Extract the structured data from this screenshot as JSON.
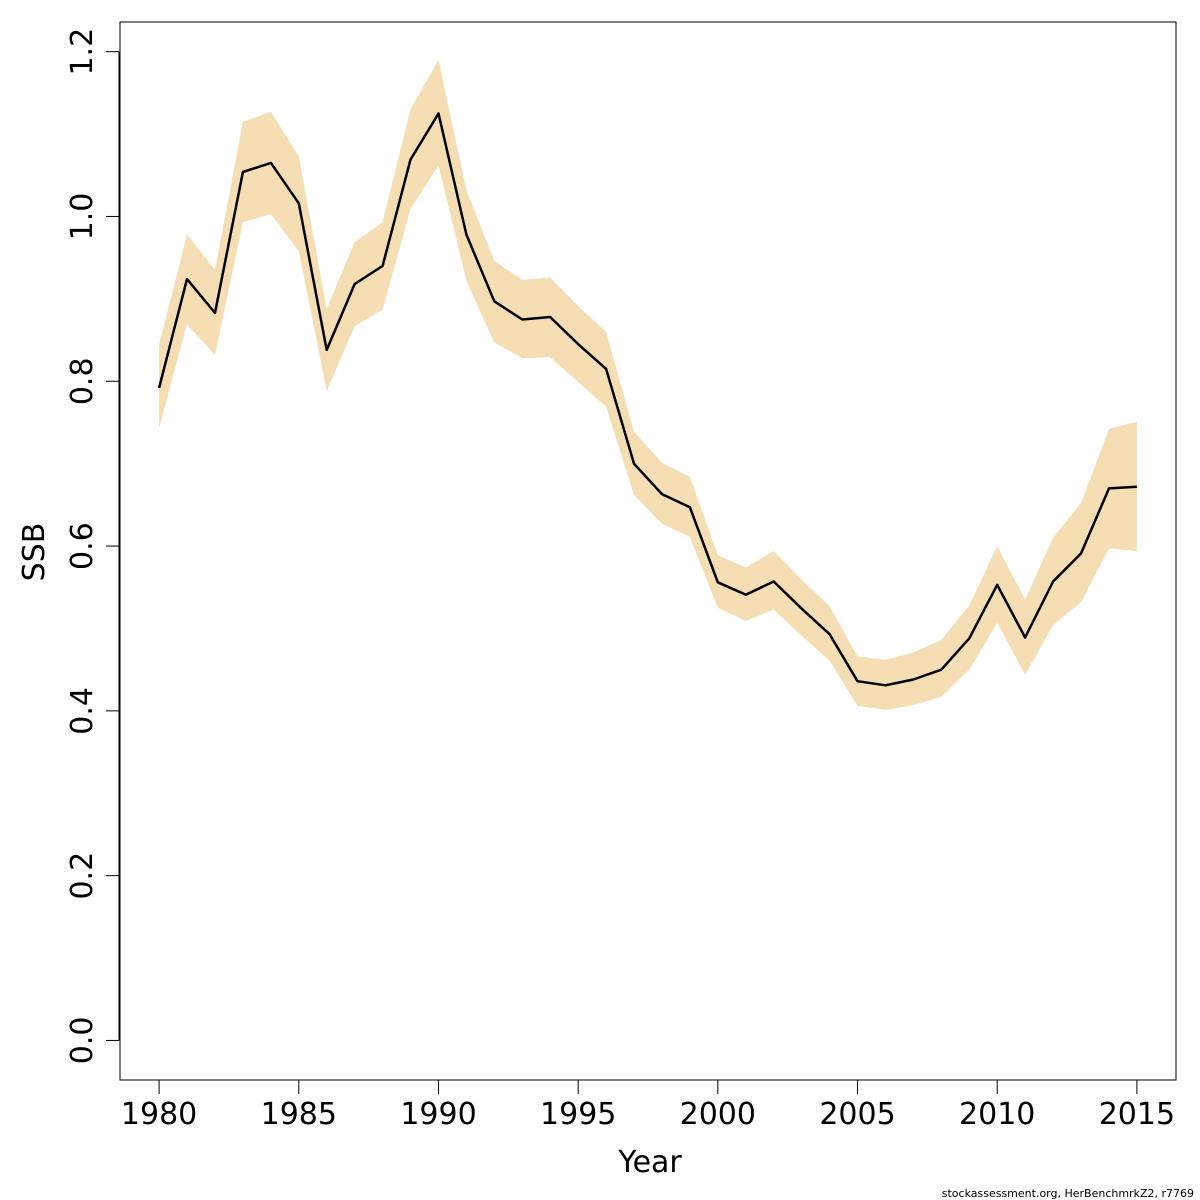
{
  "chart_data": {
    "type": "line",
    "title": "",
    "xlabel": "Year",
    "ylabel": "SSB",
    "xlim": [
      1978.6,
      2016.4
    ],
    "ylim": [
      -0.048,
      1.236
    ],
    "xticks": [
      1980,
      1985,
      1990,
      1995,
      2000,
      2005,
      2010,
      2015
    ],
    "yticks": [
      "0.0",
      "0.2",
      "0.4",
      "0.6",
      "0.8",
      "1.0",
      "1.2"
    ],
    "grid": false,
    "legend": "none",
    "colors": {
      "line": "#000000",
      "band": "#f5deb3",
      "frame": "#000000"
    },
    "x": [
      1980,
      1981,
      1982,
      1983,
      1984,
      1985,
      1986,
      1987,
      1988,
      1989,
      1990,
      1991,
      1992,
      1993,
      1994,
      1995,
      1996,
      1997,
      1998,
      1999,
      2000,
      2001,
      2002,
      2003,
      2004,
      2005,
      2006,
      2007,
      2008,
      2009,
      2010,
      2011,
      2012,
      2013,
      2014,
      2015
    ],
    "series": [
      {
        "values": [
          0.792,
          0.924,
          0.883,
          1.054,
          1.065,
          1.016,
          0.838,
          0.918,
          0.94,
          1.069,
          1.125,
          0.978,
          0.897,
          0.875,
          0.878,
          0.845,
          0.815,
          0.7,
          0.663,
          0.647,
          0.556,
          0.541,
          0.557,
          0.524,
          0.493,
          0.436,
          0.431,
          0.438,
          0.45,
          0.488,
          0.553,
          0.489,
          0.557,
          0.591,
          0.67,
          0.672
        ],
        "lower": [
          0.743,
          0.869,
          0.832,
          0.993,
          1.003,
          0.958,
          0.788,
          0.867,
          0.887,
          1.009,
          1.062,
          0.922,
          0.847,
          0.828,
          0.829,
          0.799,
          0.769,
          0.662,
          0.627,
          0.611,
          0.525,
          0.509,
          0.523,
          0.491,
          0.461,
          0.406,
          0.401,
          0.407,
          0.417,
          0.45,
          0.507,
          0.444,
          0.504,
          0.532,
          0.597,
          0.594
        ],
        "upper": [
          0.845,
          0.978,
          0.935,
          1.115,
          1.127,
          1.073,
          0.888,
          0.969,
          0.993,
          1.13,
          1.19,
          1.032,
          0.946,
          0.923,
          0.926,
          0.891,
          0.86,
          0.739,
          0.701,
          0.684,
          0.589,
          0.574,
          0.594,
          0.559,
          0.527,
          0.466,
          0.462,
          0.471,
          0.486,
          0.528,
          0.6,
          0.535,
          0.61,
          0.652,
          0.742,
          0.751
        ]
      }
    ]
  },
  "footnote": "stockassessment.org, HerBenchmrkZ2, r7769"
}
